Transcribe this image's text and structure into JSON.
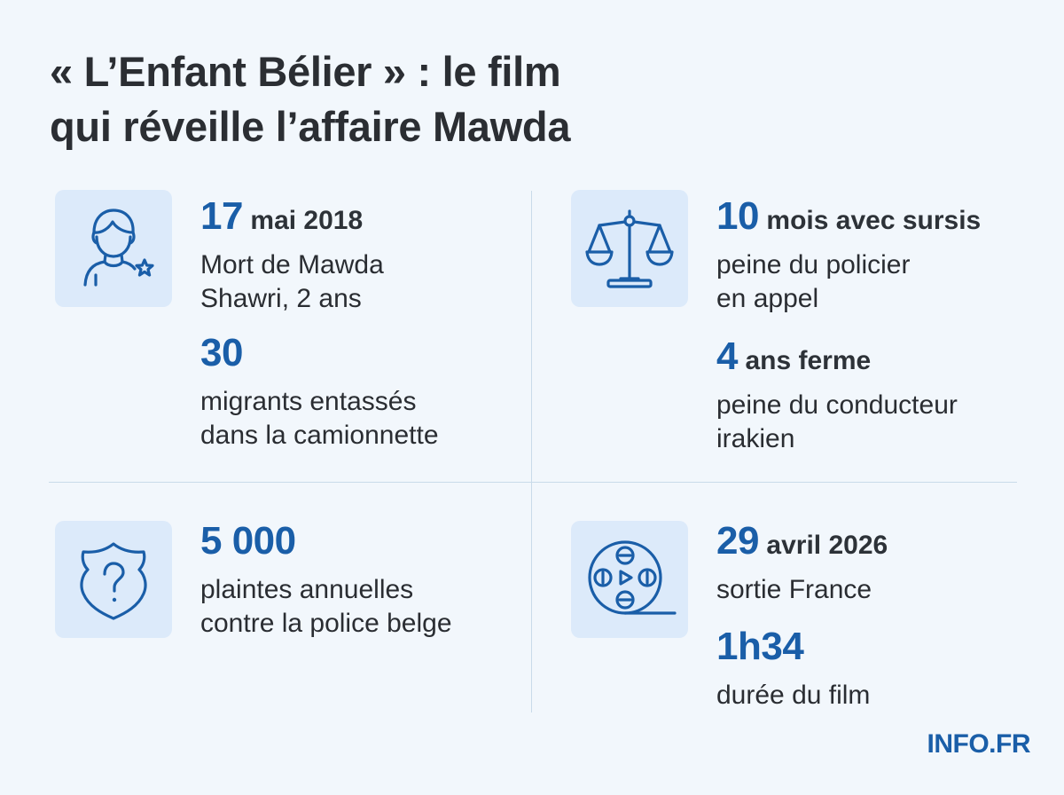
{
  "title": {
    "line1": "« L’Enfant Bélier » : le film",
    "line2": "qui réveille l’affaire Mawda"
  },
  "stats": {
    "death": {
      "num": "17",
      "unit": "mai 2018",
      "desc1": "Mort de Mawda",
      "desc2": "Shawri, 2 ans"
    },
    "migrants": {
      "num": "30",
      "desc1": "migrants entassés",
      "desc2": "dans la camionnette"
    },
    "police_sentence": {
      "num": "10",
      "unit": "mois avec sursis",
      "desc1": "peine du policier",
      "desc2": "en appel"
    },
    "driver_sentence": {
      "num": "4",
      "unit": "ans ferme",
      "desc1": "peine du conducteur",
      "desc2": "irakien"
    },
    "complaints": {
      "num": "5 000",
      "desc1": "plaintes annuelles",
      "desc2": "contre la police belge"
    },
    "release": {
      "num": "29",
      "unit": "avril 2026",
      "desc1": "sortie France"
    },
    "duration": {
      "num": "1h34",
      "desc1": "durée du film"
    }
  },
  "icons": {
    "child": "child-icon",
    "scales": "scales-of-justice-icon",
    "badge": "police-badge-question-icon",
    "film": "film-reel-icon"
  },
  "colors": {
    "accent": "#1a5ea8",
    "background": "#f2f7fc",
    "icon_box": "#dceafa",
    "text": "#2a2d32"
  },
  "brand": "INFO.FR"
}
